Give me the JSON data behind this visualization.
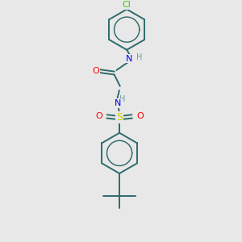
{
  "bg_color": "#e8e8e8",
  "bond_color": "#2d6b6b",
  "atom_colors": {
    "Cl": "#33cc00",
    "O": "#ff0000",
    "N": "#0000ee",
    "S": "#cccc00",
    "H": "#6b9b9b",
    "C": "#2d6b6b"
  },
  "bond_width": 1.4,
  "fig_w": 3.0,
  "fig_h": 3.0,
  "dpi": 100,
  "xlim": [
    -2.5,
    2.5
  ],
  "ylim": [
    -7.5,
    5.0
  ]
}
